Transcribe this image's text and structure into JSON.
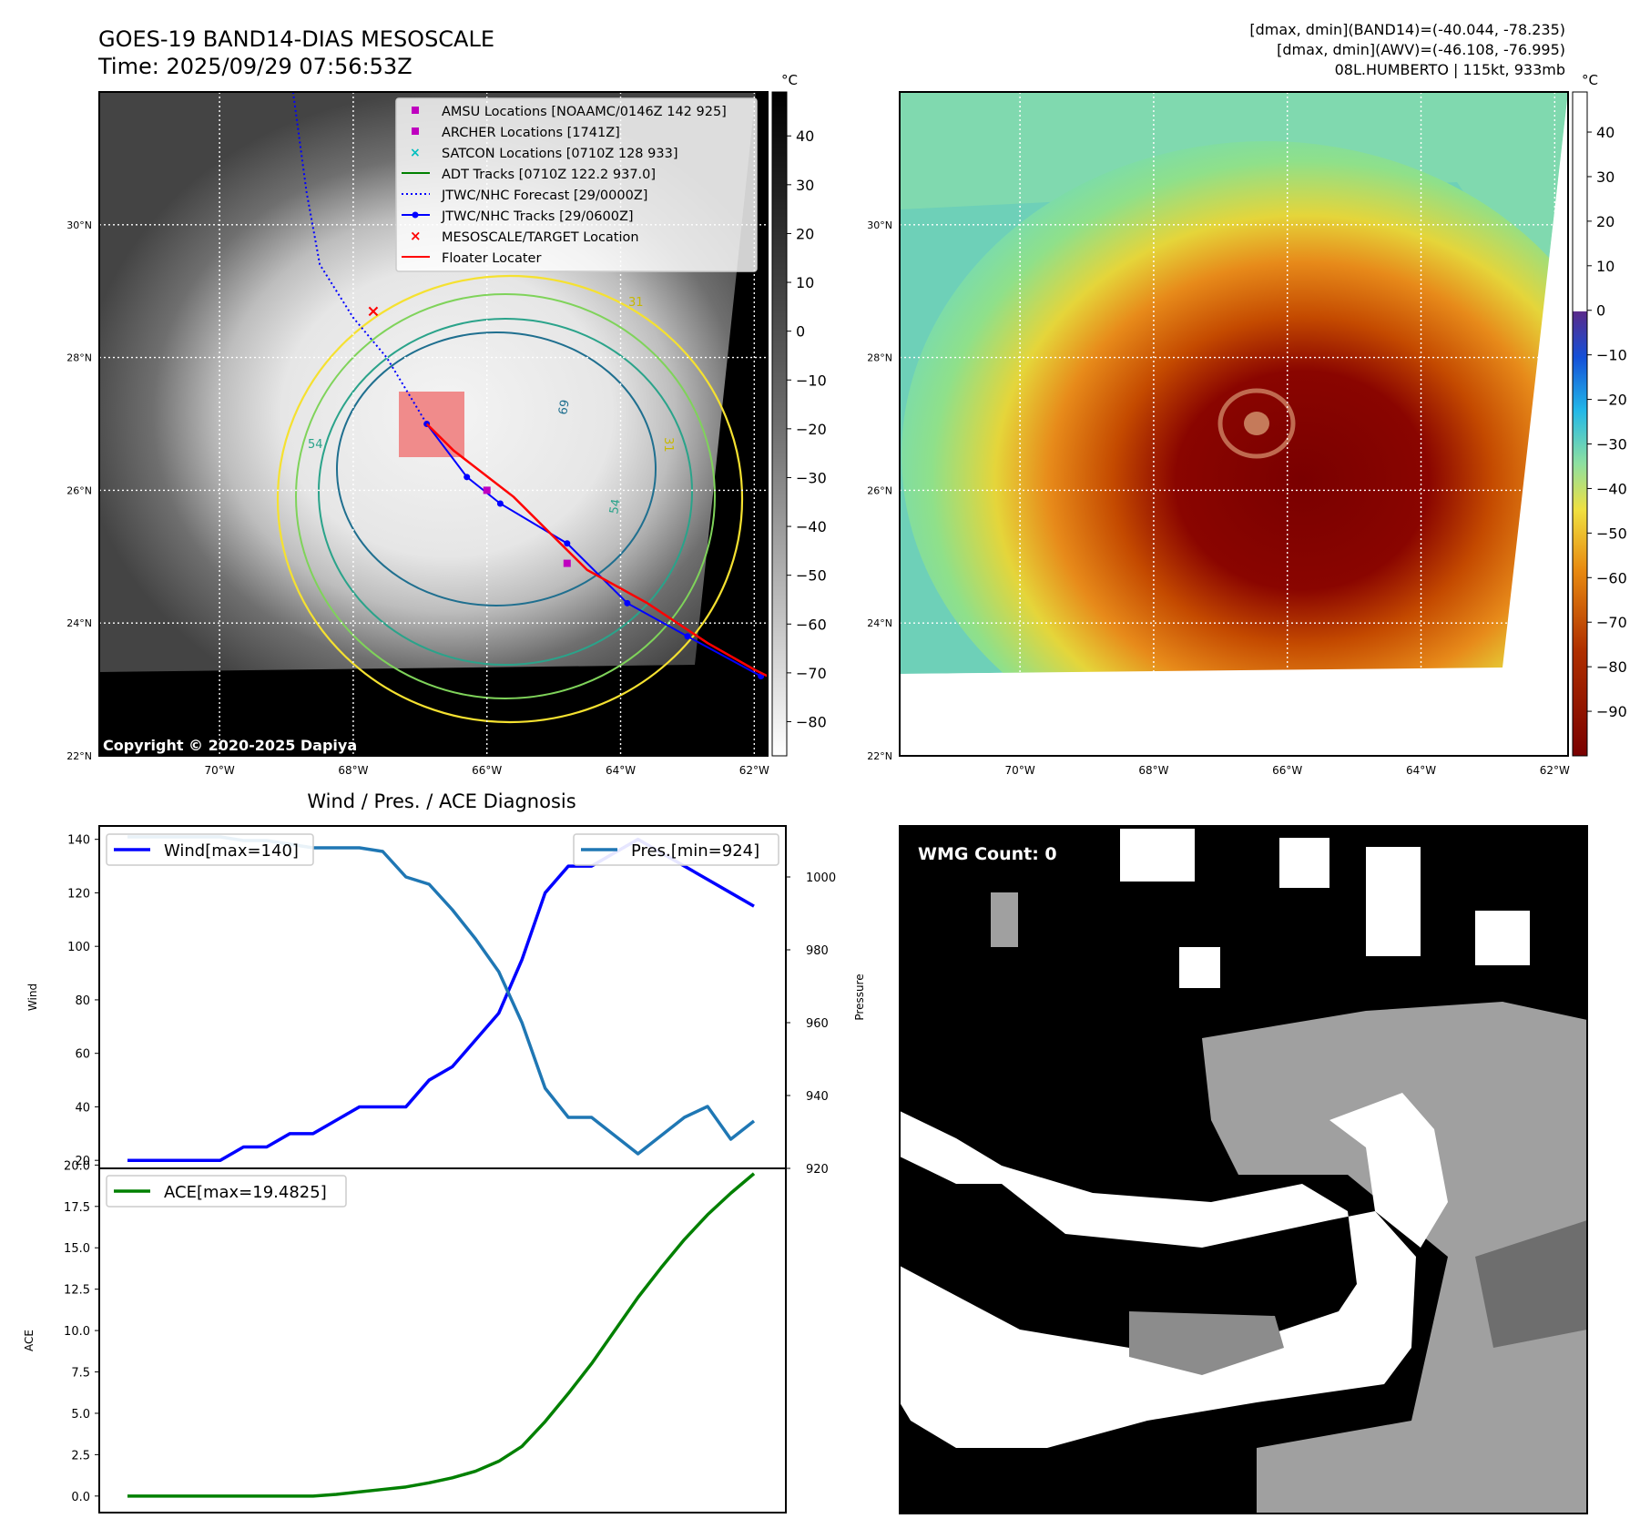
{
  "header": {
    "title_line1": "GOES-19 BAND14-DIAS MESOSCALE",
    "title_line2": "Time: 2025/09/29 07:56:53Z",
    "stats_line1": "[dmax, dmin](BAND14)=(-40.044, -78.235)",
    "stats_line2": "[dmax, dmin](AWV)=(-46.108, -76.995)",
    "stats_line3": "08L.HUMBERTO | 115kt, 933mb"
  },
  "map_axes": {
    "lat_ticks": [
      "30°N",
      "28°N",
      "26°N",
      "24°N",
      "22°N"
    ],
    "lat_values": [
      30,
      28,
      26,
      24,
      22
    ],
    "lon_ticks": [
      "70°W",
      "68°W",
      "66°W",
      "64°W",
      "62°W"
    ],
    "lon_values": [
      -70,
      -68,
      -66,
      -64,
      -62
    ],
    "lat_range": [
      22,
      32
    ],
    "lon_range": [
      -71.8,
      -61.8
    ]
  },
  "ir_map": {
    "copyright": "Copyright © 2020-2025 Dapiya",
    "colorbar_unit": "°C",
    "colorbar_ticks": [
      "40",
      "30",
      "20",
      "10",
      "0",
      "−10",
      "−20",
      "−30",
      "−40",
      "−50",
      "−60",
      "−70",
      "−80"
    ],
    "colorbar_values": [
      40,
      30,
      20,
      10,
      0,
      -10,
      -20,
      -30,
      -40,
      -50,
      -60,
      -70,
      -80
    ],
    "colorbar_range": [
      -87,
      49
    ],
    "legend": [
      {
        "label": "AMSU Locations [NOAAMC/0146Z 142 925]",
        "color": "#bf00bf"
      },
      {
        "label": "ARCHER Locations [1741Z]",
        "color": "#bf00bf"
      },
      {
        "label": "SATCON Locations [0710Z 128 933]",
        "color": "#00bfbf"
      },
      {
        "label": "ADT Tracks [0710Z 122.2 937.0]",
        "color": "#008000"
      },
      {
        "label": "JTWC/NHC Forecast [29/0000Z]",
        "color": "#0000ff"
      },
      {
        "label": "JTWC/NHC Tracks [29/0600Z]",
        "color": "#0000ff"
      },
      {
        "label": "MESOSCALE/TARGET Location",
        "color": "#ff0000"
      },
      {
        "label": "Floater Locater",
        "color": "#ff0000"
      }
    ],
    "contour_labels": [
      "31",
      "54",
      "69",
      "54",
      "31"
    ],
    "forecast_track": [
      [
        -68.9,
        32
      ],
      [
        -68.7,
        30.5
      ],
      [
        -68.5,
        29.4
      ],
      [
        -68.0,
        28.6
      ],
      [
        -67.5,
        28.0
      ],
      [
        -67.2,
        27.5
      ],
      [
        -66.9,
        27.0
      ]
    ],
    "best_track": [
      [
        -66.9,
        27.0
      ],
      [
        -66.3,
        26.2
      ],
      [
        -65.8,
        25.8
      ],
      [
        -64.8,
        25.2
      ],
      [
        -63.9,
        24.3
      ],
      [
        -63.0,
        23.8
      ],
      [
        -61.9,
        23.2
      ]
    ],
    "floater_track": [
      [
        -66.9,
        27.0
      ],
      [
        -66.5,
        26.6
      ],
      [
        -65.6,
        25.9
      ],
      [
        -64.5,
        24.8
      ],
      [
        -63.6,
        24.3
      ],
      [
        -62.7,
        23.7
      ],
      [
        -62.0,
        23.3
      ],
      [
        -61.8,
        23.2
      ]
    ],
    "target_location": [
      -67.7,
      28.7
    ],
    "amsu_location": [
      -66.0,
      26.0
    ],
    "archer_location": [
      -64.8,
      24.9
    ]
  },
  "awv_map": {
    "colorbar_unit": "°C",
    "colorbar_ticks": [
      "40",
      "30",
      "20",
      "10",
      "0",
      "−10",
      "−20",
      "−30",
      "−40",
      "−50",
      "−60",
      "−70",
      "−80",
      "−90"
    ],
    "colorbar_values": [
      40,
      30,
      20,
      10,
      0,
      -10,
      -20,
      -30,
      -40,
      -50,
      -60,
      -70,
      -80,
      -90
    ],
    "colorbar_range": [
      -100,
      49
    ]
  },
  "wmg": {
    "label": "WMG Count: 0"
  },
  "chart_data": [
    {
      "type": "line",
      "title": "Wind / Pres. / ACE Diagnosis",
      "ylabel": "Wind",
      "y2label": "Pressure",
      "ylim": [
        17,
        145
      ],
      "y2lim": [
        920,
        1014
      ],
      "yticks": [
        20,
        40,
        60,
        80,
        100,
        120,
        140
      ],
      "y2ticks": [
        920,
        940,
        960,
        980,
        1000
      ],
      "series": [
        {
          "name": "Wind[max=140]",
          "color": "#0000ff",
          "axis": "left",
          "values": [
            20,
            20,
            20,
            20,
            20,
            25,
            25,
            30,
            30,
            35,
            40,
            40,
            40,
            50,
            55,
            65,
            75,
            95,
            120,
            130,
            130,
            135,
            140,
            135,
            130,
            125,
            120,
            115
          ]
        },
        {
          "name": "Pres.[min=924]",
          "color": "#1f77b4",
          "axis": "right",
          "values": [
            1011,
            1011,
            1011,
            1011,
            1011,
            1010,
            1010,
            1009,
            1008,
            1008,
            1008,
            1007,
            1000,
            998,
            991,
            983,
            974,
            960,
            942,
            934,
            934,
            929,
            924,
            929,
            934,
            937,
            928,
            933
          ]
        }
      ]
    },
    {
      "type": "line",
      "ylabel": "ACE",
      "ylim": [
        -1,
        19.8
      ],
      "yticks": [
        0.0,
        2.5,
        5.0,
        7.5,
        10.0,
        12.5,
        15.0,
        17.5,
        20.0
      ],
      "ytick_labels": [
        "0.0",
        "2.5",
        "5.0",
        "7.5",
        "10.0",
        "12.5",
        "15.0",
        "17.5",
        "20.0"
      ],
      "series": [
        {
          "name": "ACE[max=19.4825]",
          "color": "#008000",
          "values": [
            0,
            0,
            0,
            0,
            0,
            0,
            0,
            0,
            0,
            0.1,
            0.25,
            0.4,
            0.55,
            0.8,
            1.1,
            1.5,
            2.1,
            3.0,
            4.5,
            6.2,
            8.0,
            10.0,
            12.0,
            13.8,
            15.5,
            17.0,
            18.3,
            19.4825
          ]
        }
      ]
    }
  ]
}
